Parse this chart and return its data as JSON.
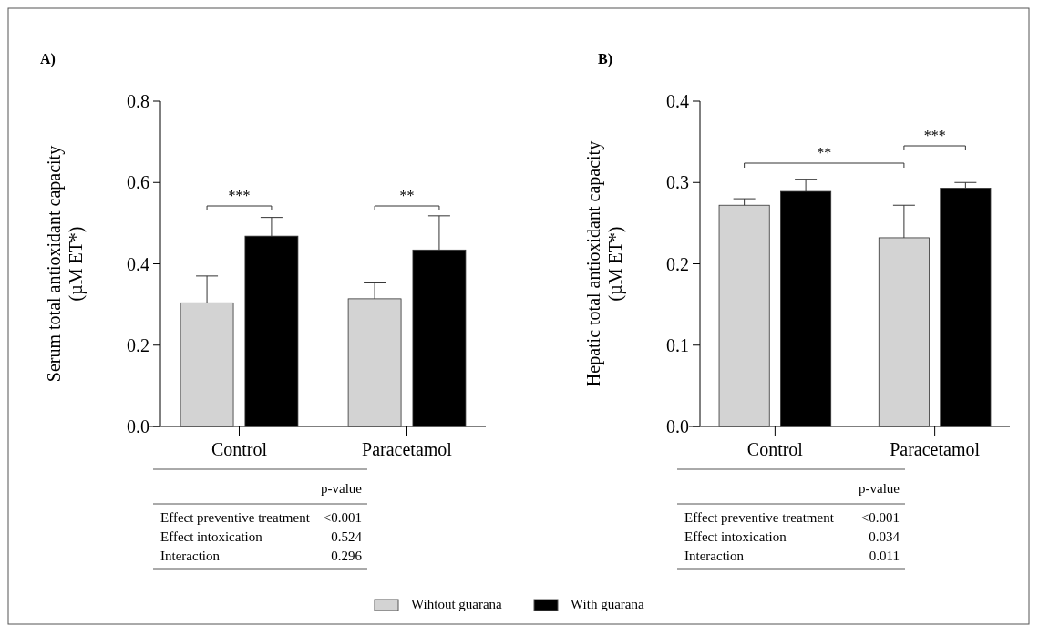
{
  "chart_data": [
    {
      "type": "bar",
      "title": "A)",
      "ylabel": "Serum total antioxidant capacity\n(µM ET*)",
      "categories": [
        "Control",
        "Paracetamol"
      ],
      "ylim": [
        0,
        0.8
      ],
      "yticks": [
        {
          "value": 0,
          "label": "0.0"
        },
        0.2,
        0.4,
        0.6,
        0.8
      ],
      "legend": "bottom",
      "series": [
        {
          "name": "Wihtout guarana",
          "color": "#d3d3d3",
          "values": [
            0.304,
            0.314
          ],
          "errors": [
            [
              0.304,
              0.37
            ],
            [
              0.314,
              0.353
            ]
          ]
        },
        {
          "name": "With guarana",
          "color": "#000000",
          "values": [
            0.468,
            0.434
          ],
          "errors": [
            [
              0.468,
              0.514
            ],
            [
              0.434,
              0.518
            ]
          ]
        }
      ],
      "annotations": [
        "***",
        "**",
        "p-value",
        "Effect preventive treatment",
        "<0.001",
        "Effect intoxication",
        "0.524",
        "Interaction",
        "0.296"
      ]
    },
    {
      "type": "bar",
      "title": "B)",
      "ylabel": "Hepatic total antioxidant capacity\n(µM ET*)",
      "categories": [
        "Control",
        "Paracetamol"
      ],
      "ylim": [
        0,
        0.4
      ],
      "yticks": [
        {
          "value": 0,
          "label": "0.0"
        },
        0.1,
        0.2,
        0.3,
        0.4
      ],
      "series": [
        {
          "color": "#d3d3d3",
          "values": [
            0.272,
            0.232
          ],
          "errors": [
            [
              0.272,
              0.28
            ],
            [
              0.232,
              0.272
            ]
          ]
        },
        {
          "color": "#000000",
          "values": [
            0.289,
            0.293
          ],
          "errors": [
            [
              0.289,
              0.304
            ],
            [
              0.293,
              0.3
            ]
          ]
        }
      ],
      "annotations": [
        "**",
        "***",
        "p-value",
        "Effect preventive treatment",
        "<0.001",
        "Effect intoxication",
        "0.034",
        "Interaction",
        "0.011"
      ]
    }
  ]
}
